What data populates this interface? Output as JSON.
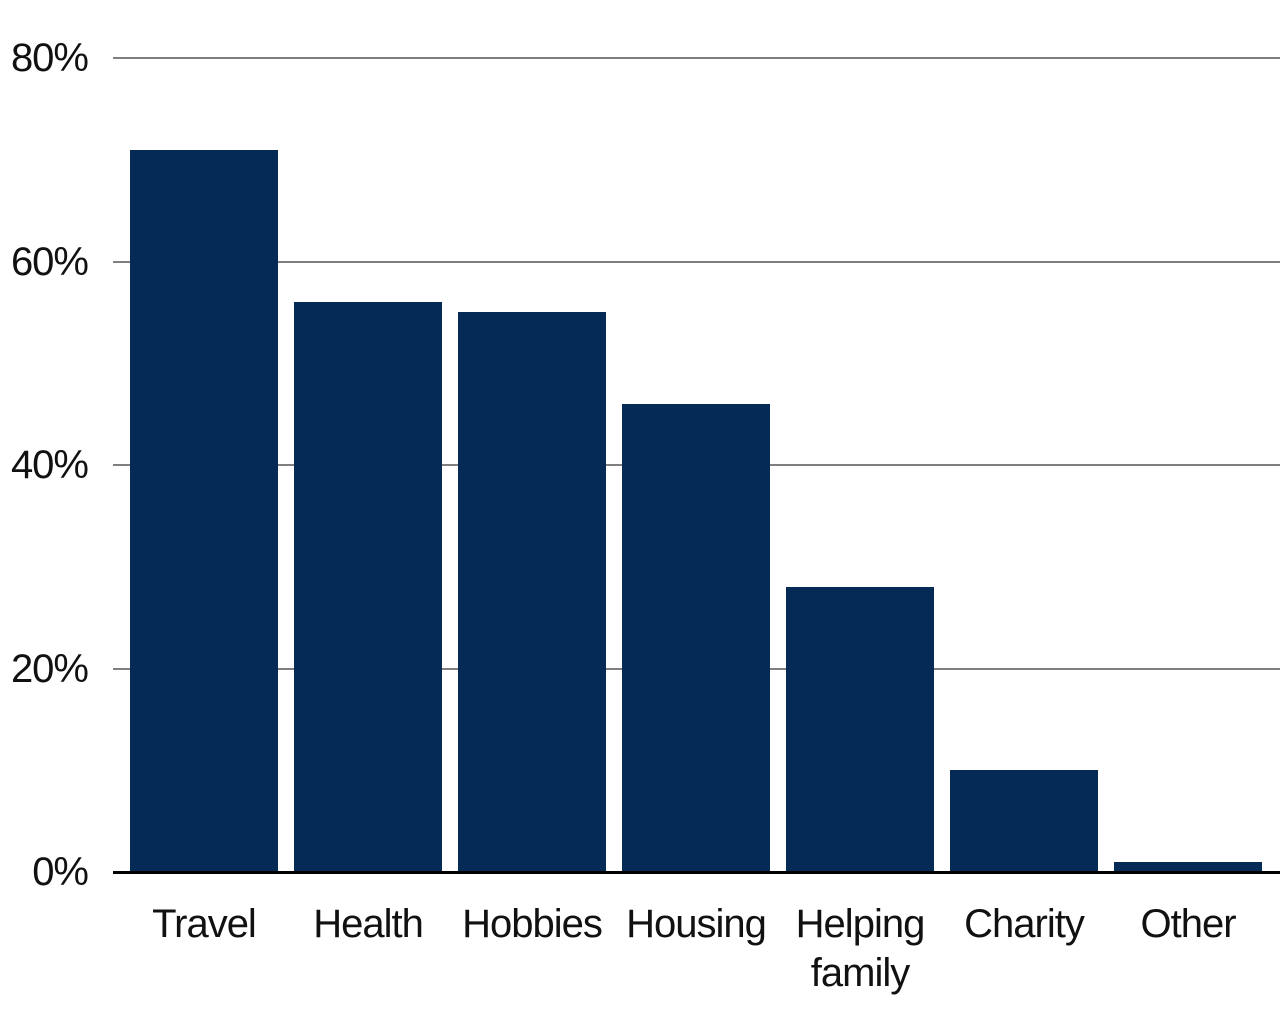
{
  "chart_data": {
    "type": "bar",
    "categories": [
      "Travel",
      "Health",
      "Hobbies",
      "Housing",
      "Helping family",
      "Charity",
      "Other"
    ],
    "values": [
      71,
      56,
      55,
      46,
      28,
      10,
      1
    ],
    "title": "",
    "xlabel": "",
    "ylabel": "",
    "ylim": [
      0,
      80
    ],
    "yticks": [
      0,
      20,
      40,
      60,
      80
    ],
    "ytick_labels": [
      "0%",
      "20%",
      "40%",
      "60%",
      "80%"
    ],
    "grid": true,
    "legend": false,
    "colors": {
      "bar_fill": "#052a56",
      "gridline": "#7f7f7f",
      "axis_line": "#000000",
      "text": "#111111",
      "background": "#ffffff"
    }
  }
}
